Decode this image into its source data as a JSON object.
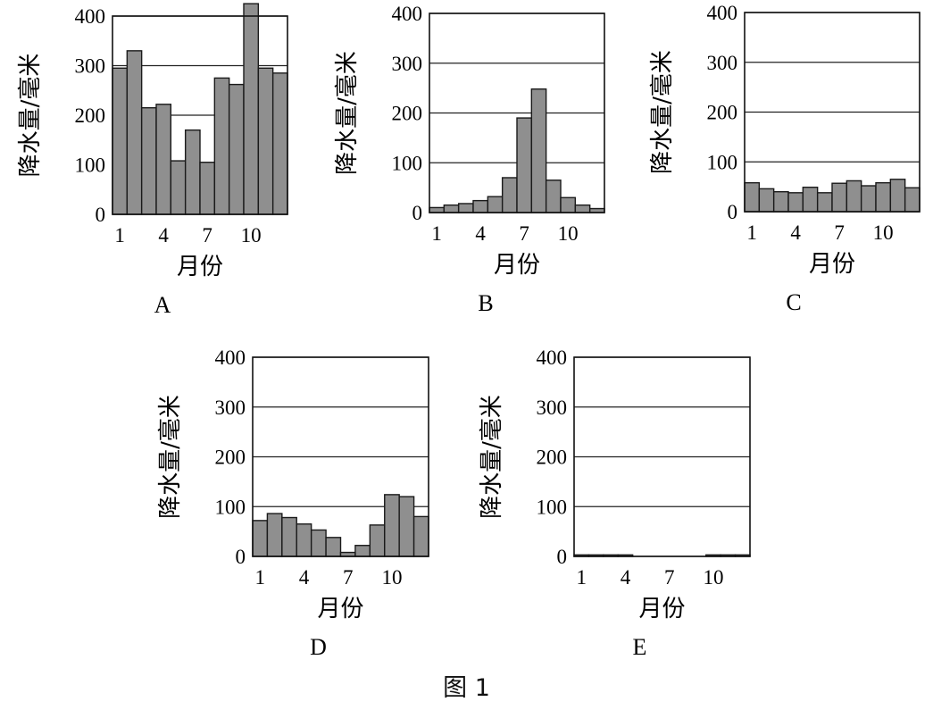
{
  "figure": {
    "caption": "图 1"
  },
  "chart_data": [
    {
      "id": "A",
      "type": "bar",
      "panel_label": "A",
      "xlabel": "月份",
      "ylabel": "降水量/毫米",
      "ylim": [
        0,
        400
      ],
      "yticks": [
        0,
        100,
        200,
        300,
        400
      ],
      "xtick_labels": [
        "1",
        "4",
        "7",
        "10"
      ],
      "categories": [
        1,
        2,
        3,
        4,
        5,
        6,
        7,
        8,
        9,
        10,
        11,
        12
      ],
      "values": [
        295,
        330,
        215,
        222,
        108,
        170,
        105,
        275,
        262,
        425,
        295,
        285
      ],
      "grid": "horizontal"
    },
    {
      "id": "B",
      "type": "bar",
      "panel_label": "B",
      "xlabel": "月份",
      "ylabel": "降水量/毫米",
      "ylim": [
        0,
        400
      ],
      "yticks": [
        0,
        100,
        200,
        300,
        400
      ],
      "xtick_labels": [
        "1",
        "4",
        "7",
        "10"
      ],
      "categories": [
        1,
        2,
        3,
        4,
        5,
        6,
        7,
        8,
        9,
        10,
        11,
        12
      ],
      "values": [
        10,
        15,
        18,
        24,
        32,
        70,
        190,
        248,
        65,
        30,
        15,
        8
      ],
      "grid": "horizontal"
    },
    {
      "id": "C",
      "type": "bar",
      "panel_label": "C",
      "xlabel": "月份",
      "ylabel": "降水量/毫米",
      "ylim": [
        0,
        400
      ],
      "yticks": [
        0,
        100,
        200,
        300,
        400
      ],
      "xtick_labels": [
        "1",
        "4",
        "7",
        "10"
      ],
      "categories": [
        1,
        2,
        3,
        4,
        5,
        6,
        7,
        8,
        9,
        10,
        11,
        12
      ],
      "values": [
        58,
        46,
        40,
        38,
        49,
        38,
        57,
        62,
        52,
        58,
        65,
        48
      ],
      "grid": "horizontal"
    },
    {
      "id": "D",
      "type": "bar",
      "panel_label": "D",
      "xlabel": "月份",
      "ylabel": "降水量/毫米",
      "ylim": [
        0,
        400
      ],
      "yticks": [
        0,
        100,
        200,
        300,
        400
      ],
      "xtick_labels": [
        "1",
        "4",
        "7",
        "10"
      ],
      "categories": [
        1,
        2,
        3,
        4,
        5,
        6,
        7,
        8,
        9,
        10,
        11,
        12
      ],
      "values": [
        72,
        86,
        78,
        65,
        53,
        38,
        8,
        22,
        63,
        124,
        120,
        80
      ],
      "grid": "horizontal"
    },
    {
      "id": "E",
      "type": "bar",
      "panel_label": "E",
      "xlabel": "月份",
      "ylabel": "降水量/毫米",
      "ylim": [
        0,
        400
      ],
      "yticks": [
        0,
        100,
        200,
        300,
        400
      ],
      "xtick_labels": [
        "1",
        "4",
        "7",
        "10"
      ],
      "categories": [
        1,
        2,
        3,
        4,
        5,
        6,
        7,
        8,
        9,
        10,
        11,
        12
      ],
      "values": [
        3,
        3,
        3,
        3,
        0,
        0,
        0,
        0,
        0,
        3,
        3,
        3
      ],
      "grid": "horizontal"
    }
  ]
}
